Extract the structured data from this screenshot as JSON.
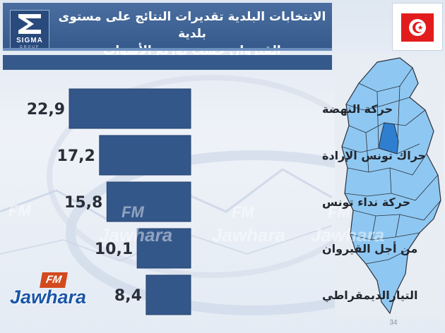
{
  "header": {
    "title_line1": "الانتخابات البلدية تقديرات النتائج على مستوى بلدية",
    "title_line2": "القيروان حسب توزيع الأصوات",
    "brand_name": "SIGMA",
    "brand_sub": "GROUP"
  },
  "colors": {
    "header_bg": "#3f6396",
    "bar_fill": "#34578a",
    "map_fill": "#8ec8f2",
    "map_highlight": "#2f7fd1",
    "flag_red": "#e21c1c"
  },
  "watermark": {
    "fm": "FM",
    "name": "Jawhara"
  },
  "page_number": "34",
  "chart_data": {
    "type": "bar",
    "orientation": "horizontal",
    "categories": [
      "حركة النهضة",
      "حراك تونس الإرادة",
      "حركة نداء تونس",
      "من أجل القيروان",
      "التيارالديمقراطي"
    ],
    "values": [
      22.9,
      17.2,
      15.8,
      10.1,
      8.4
    ],
    "value_labels": [
      "22,9",
      "17,2",
      "15,8",
      "10,1",
      "8,4"
    ],
    "title": "",
    "xlabel": "",
    "ylabel": "",
    "xlim": [
      0,
      22.9
    ],
    "grid": false,
    "legend": "none"
  }
}
